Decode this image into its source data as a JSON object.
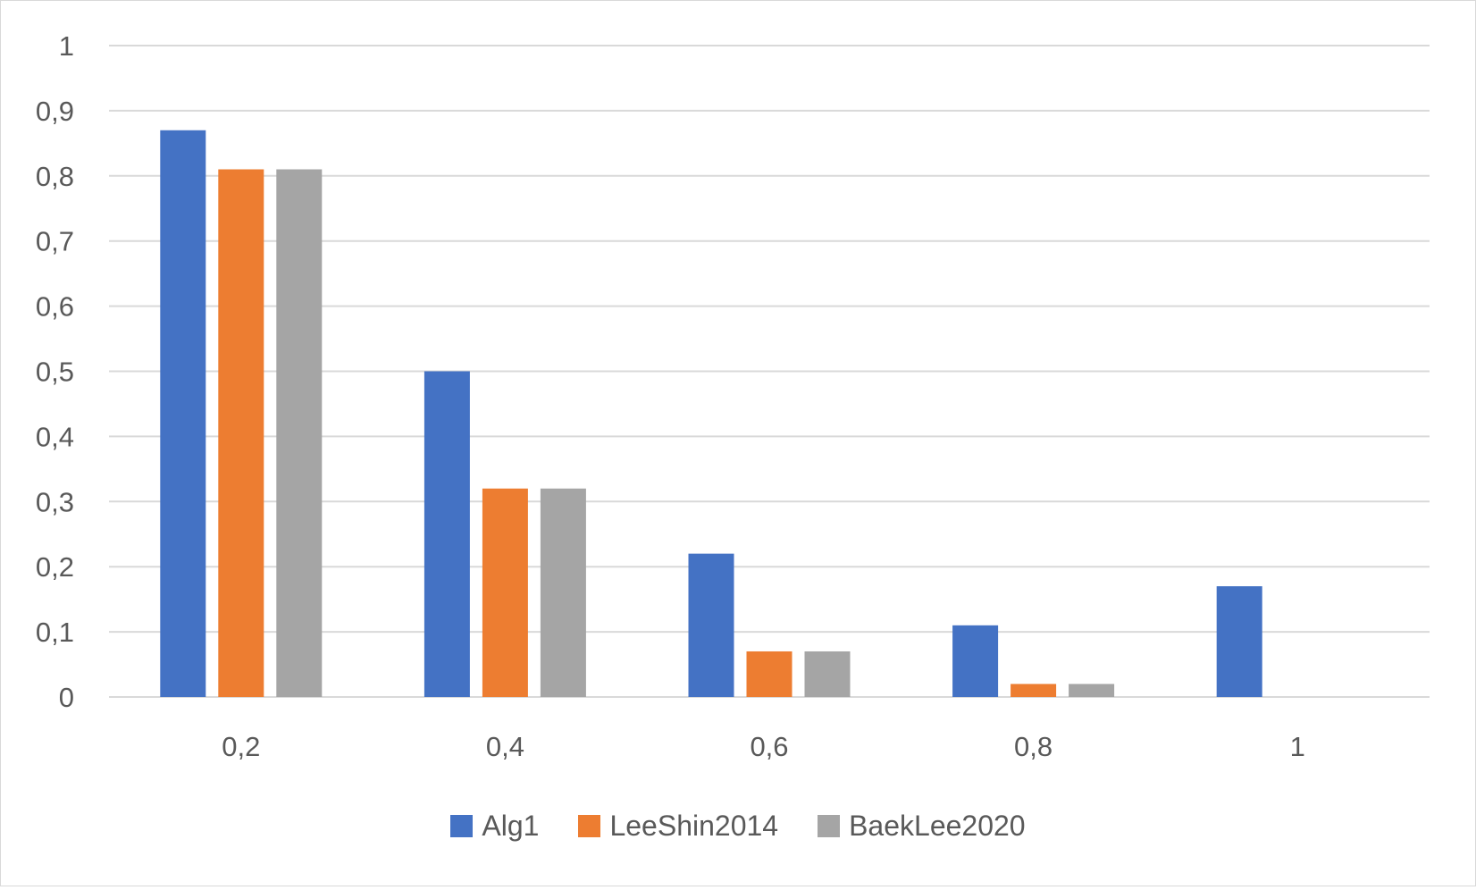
{
  "chart_data": {
    "type": "bar",
    "title": "",
    "xlabel": "",
    "ylabel": "",
    "categories": [
      "0,2",
      "0,4",
      "0,6",
      "0,8",
      "1"
    ],
    "series": [
      {
        "name": "Alg1",
        "color": "#4472C4",
        "values": [
          0.87,
          0.5,
          0.22,
          0.11,
          0.17
        ]
      },
      {
        "name": "LeeShin2014",
        "color": "#ED7D31",
        "values": [
          0.81,
          0.32,
          0.07,
          0.02,
          0
        ]
      },
      {
        "name": "BaekLee2020",
        "color": "#A5A5A5",
        "values": [
          0.81,
          0.32,
          0.07,
          0.02,
          0
        ]
      }
    ],
    "ylim": [
      0,
      1
    ],
    "yticks": [
      0,
      0.1,
      0.2,
      0.3,
      0.4,
      0.5,
      0.6,
      0.7,
      0.8,
      0.9,
      1
    ],
    "ytick_labels": [
      "0",
      "0,1",
      "0,2",
      "0,3",
      "0,4",
      "0,5",
      "0,6",
      "0,7",
      "0,8",
      "0,9",
      "1"
    ],
    "grid": true,
    "legend_position": "bottom"
  }
}
